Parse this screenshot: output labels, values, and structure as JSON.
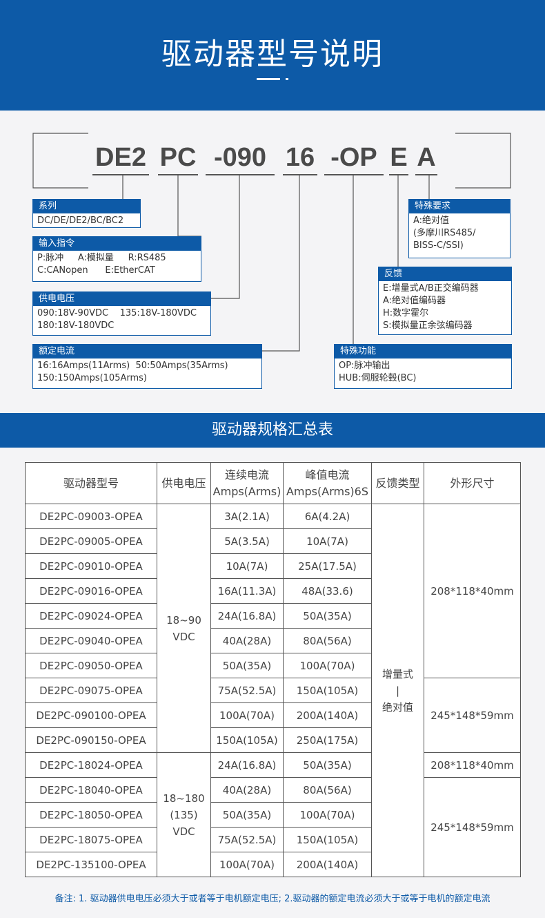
{
  "header": {
    "title": "驱动器型号说明"
  },
  "model_code": {
    "parts": [
      "DE2",
      "PC",
      "-090",
      "16",
      "-OP",
      "E",
      "A"
    ]
  },
  "boxes": [
    {
      "title": "系列",
      "lines": [
        "DC/DE/DE2/BC/BC2"
      ]
    },
    {
      "title": "输入指令",
      "lines": [
        "P:脉冲     A:模拟量     R:RS485",
        "C:CANopen      E:EtherCAT"
      ]
    },
    {
      "title": "供电电压",
      "lines": [
        "090:18V-90VDC    135:18V-180VDC",
        "180:18V-180VDC"
      ]
    },
    {
      "title": "额定电流",
      "lines": [
        "16:16Amps(11Arms)  50:50Amps(35Arms)",
        "150:150Amps(105Arms)"
      ]
    },
    {
      "title": "特殊要求",
      "lines": [
        "A:绝对值",
        "(多摩川RS485/",
        "BISS-C/SSI)"
      ]
    },
    {
      "title": "反馈",
      "lines": [
        "E:增量式A/B正交编码器",
        "A:绝对值编码器",
        "H:数字霍尔",
        "S:模拟量正余弦编码器"
      ]
    },
    {
      "title": "特殊功能",
      "lines": [
        "OP:脉冲输出",
        "HUB:伺服轮毂(BC)"
      ]
    }
  ],
  "section_title": "驱动器规格汇总表",
  "table": {
    "header": [
      [
        "驱动器型号"
      ],
      [
        "供电电压"
      ],
      [
        "连续电流",
        "Amps(Arms)"
      ],
      [
        "峰值电流",
        "Amps(Arms)6S"
      ],
      [
        "反馈类型"
      ],
      [
        "外形尺寸"
      ]
    ],
    "rows": [
      [
        "DE2PC-09003-OPEA",
        "3A(2.1A)",
        "6A(4.2A)"
      ],
      [
        "DE2PC-09005-OPEA",
        "5A(3.5A)",
        "10A(7A)"
      ],
      [
        "DE2PC-09010-OPEA",
        "10A(7A)",
        "25A(17.5A)"
      ],
      [
        "DE2PC-09016-OPEA",
        "16A(11.3A)",
        "48A(33.6)"
      ],
      [
        "DE2PC-09024-OPEA",
        "24A(16.8A)",
        "50A(35A)"
      ],
      [
        "DE2PC-09040-OPEA",
        "40A(28A)",
        "80A(56A)"
      ],
      [
        "DE2PC-09050-OPEA",
        "50A(35A)",
        "100A(70A)"
      ],
      [
        "DE2PC-09075-OPEA",
        "75A(52.5A)",
        "150A(105A)"
      ],
      [
        "DE2PC-090100-OPEA",
        "100A(70A)",
        "200A(140A)"
      ],
      [
        "DE2PC-090150-OPEA",
        "150A(105A)",
        "250A(175A)"
      ],
      [
        "DE2PC-18024-OPEA",
        "24A(16.8A)",
        "50A(35A)"
      ],
      [
        "DE2PC-18040-OPEA",
        "40A(28A)",
        "80A(56A)"
      ],
      [
        "DE2PC-18050-OPEA",
        "50A(35A)",
        "100A(70A)"
      ],
      [
        "DE2PC-18075-OPEA",
        "75A(52.5A)",
        "150A(105A)"
      ],
      [
        "DE2PC-135100-OPEA",
        "100A(70A)",
        "200A(140A)"
      ]
    ],
    "voltage": [
      {
        "lines": [
          "18~90",
          "VDC"
        ],
        "span": 10
      },
      {
        "lines": [
          "18~180",
          "(135)",
          "VDC"
        ],
        "span": 5
      }
    ],
    "feedback": [
      {
        "lines": [
          "增量式",
          "|",
          "绝对值"
        ],
        "span": 15
      }
    ],
    "size": [
      {
        "lines": [
          "208*118*40mm"
        ],
        "span": 7
      },
      {
        "lines": [
          "245*148*59mm"
        ],
        "span": 3
      },
      {
        "lines": [
          "208*118*40mm"
        ],
        "span": 1
      },
      {
        "lines": [
          "245*148*59mm"
        ],
        "span": 4
      }
    ]
  },
  "note": "备注: 1. 驱动器供电电压必须大于或者等于电机额定电压; 2.驱动器的额定电流必须大于或等于电机的额定电流"
}
